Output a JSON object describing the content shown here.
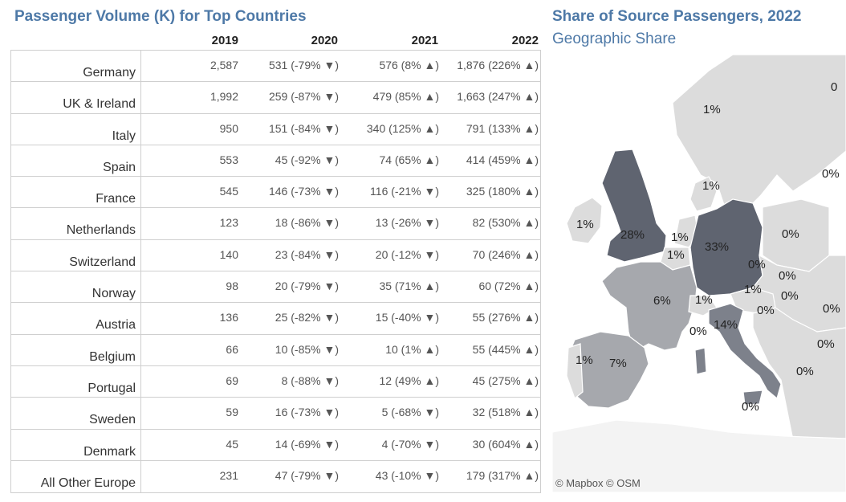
{
  "table": {
    "title": "Passenger Volume (K) for Top Countries",
    "headers": [
      "2019",
      "2020",
      "2021",
      "2022"
    ],
    "rows": [
      {
        "country": "Germany",
        "v2019": "2,587",
        "v2020": "531 (-79% ▼)",
        "v2021": "576 (8% ▲)",
        "v2022": "1,876 (226% ▲)"
      },
      {
        "country": "UK & Ireland",
        "v2019": "1,992",
        "v2020": "259 (-87% ▼)",
        "v2021": "479 (85% ▲)",
        "v2022": "1,663 (247% ▲)"
      },
      {
        "country": "Italy",
        "v2019": "950",
        "v2020": "151 (-84% ▼)",
        "v2021": "340 (125% ▲)",
        "v2022": "791 (133% ▲)"
      },
      {
        "country": "Spain",
        "v2019": "553",
        "v2020": "45 (-92% ▼)",
        "v2021": "74 (65% ▲)",
        "v2022": "414 (459% ▲)"
      },
      {
        "country": "France",
        "v2019": "545",
        "v2020": "146 (-73% ▼)",
        "v2021": "116 (-21% ▼)",
        "v2022": "325 (180% ▲)"
      },
      {
        "country": "Netherlands",
        "v2019": "123",
        "v2020": "18 (-86% ▼)",
        "v2021": "13 (-26% ▼)",
        "v2022": "82 (530% ▲)"
      },
      {
        "country": "Switzerland",
        "v2019": "140",
        "v2020": "23 (-84% ▼)",
        "v2021": "20 (-12% ▼)",
        "v2022": "70 (246% ▲)"
      },
      {
        "country": "Norway",
        "v2019": "98",
        "v2020": "20 (-79% ▼)",
        "v2021": "35 (71% ▲)",
        "v2022": "60 (72% ▲)"
      },
      {
        "country": "Austria",
        "v2019": "136",
        "v2020": "25 (-82% ▼)",
        "v2021": "15 (-40% ▼)",
        "v2022": "55 (276% ▲)"
      },
      {
        "country": "Belgium",
        "v2019": "66",
        "v2020": "10 (-85% ▼)",
        "v2021": "10 (1% ▲)",
        "v2022": "55 (445% ▲)"
      },
      {
        "country": "Portugal",
        "v2019": "69",
        "v2020": "8 (-88% ▼)",
        "v2021": "12 (49% ▲)",
        "v2022": "45 (275% ▲)"
      },
      {
        "country": "Sweden",
        "v2019": "59",
        "v2020": "16 (-73% ▼)",
        "v2021": "5 (-68% ▼)",
        "v2022": "32 (518% ▲)"
      },
      {
        "country": "Denmark",
        "v2019": "45",
        "v2020": "14 (-69% ▼)",
        "v2021": "4 (-70% ▼)",
        "v2022": "30 (604% ▲)"
      },
      {
        "country": "All Other Europe",
        "v2019": "231",
        "v2020": "47 (-79% ▼)",
        "v2021": "43 (-10% ▼)",
        "v2022": "179 (317% ▲)"
      }
    ]
  },
  "map": {
    "title": "Share of Source Passengers,  2022",
    "subtitle": "Geographic Share",
    "attribution": "© Mapbox © OSM",
    "colors": {
      "high": "#5f6470",
      "mid": "#7d818b",
      "low": "#a6a8ad",
      "zero": "#dcdcdc",
      "sea": "#ffffff"
    },
    "labels": [
      {
        "name": "norway-share",
        "text": "1%"
      },
      {
        "name": "edge-share-top",
        "text": "0"
      },
      {
        "name": "sweden-finland-share",
        "text": "0%"
      },
      {
        "name": "denmark-share",
        "text": "1%"
      },
      {
        "name": "ireland-share",
        "text": "1%"
      },
      {
        "name": "uk-share",
        "text": "28%"
      },
      {
        "name": "netherlands-share",
        "text": "1%"
      },
      {
        "name": "belgium-share",
        "text": "1%"
      },
      {
        "name": "germany-share",
        "text": "33%"
      },
      {
        "name": "poland-share",
        "text": "0%"
      },
      {
        "name": "czech-share",
        "text": "0%"
      },
      {
        "name": "slovakia-share",
        "text": "0%"
      },
      {
        "name": "austria-share",
        "text": "1%"
      },
      {
        "name": "hungary-share",
        "text": "0%"
      },
      {
        "name": "slovenia-share",
        "text": "0%"
      },
      {
        "name": "east-edge-share",
        "text": "0%"
      },
      {
        "name": "france-share",
        "text": "6%"
      },
      {
        "name": "switzerland-share",
        "text": "1%"
      },
      {
        "name": "monaco-share",
        "text": "0%"
      },
      {
        "name": "italy-share",
        "text": "14%"
      },
      {
        "name": "balkans-share",
        "text": "0%"
      },
      {
        "name": "greece-share",
        "text": "0%"
      },
      {
        "name": "portugal-share",
        "text": "1%"
      },
      {
        "name": "spain-share",
        "text": "7%"
      },
      {
        "name": "malta-share",
        "text": "0%"
      }
    ]
  }
}
